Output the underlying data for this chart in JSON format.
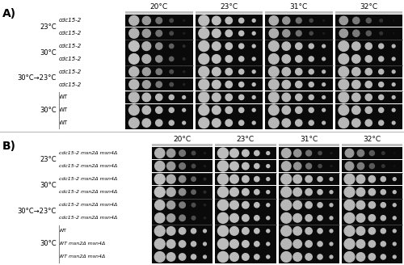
{
  "fig_width": 5.0,
  "fig_height": 3.28,
  "dpi": 100,
  "bg_color": "#ffffff",
  "panel_A": {
    "label": "A)",
    "temp_labels_incub": [
      "20°C",
      "23°C",
      "31°C",
      "32°C"
    ],
    "row_labels": [
      [
        "cdc15-2",
        "cdc15-2"
      ],
      [
        "cdc15-2",
        "cdc15-2"
      ],
      [
        "cdc15-2",
        "cdc15-2"
      ],
      [
        "WT",
        "WT",
        "WT"
      ]
    ],
    "row_groups": [
      {
        "growth": "23°C",
        "rows": 2,
        "bracket": false
      },
      {
        "growth": "30°C",
        "rows": 2,
        "bracket": false
      },
      {
        "growth": "30°C→23°C",
        "rows": 2,
        "bracket": false
      },
      {
        "growth": "30°C",
        "rows": 3,
        "bracket": true
      }
    ]
  },
  "panel_B": {
    "label": "B)",
    "temp_labels_incub": [
      "20°C",
      "23°C",
      "31°C",
      "32°C"
    ],
    "row_labels": [
      [
        "cdc15-2 msn2Δ msn4Δ",
        "cdc15-2 msn2Δ msn4Δ"
      ],
      [
        "cdc15-2 msn2Δ msn4Δ",
        "cdc15-2 msn2Δ msn4Δ"
      ],
      [
        "cdc15-2 msn2Δ msn4Δ",
        "cdc15-2 msn2Δ msn4Δ"
      ],
      [
        "WT",
        "WT msn2Δ msn4Δ",
        "WT msn2Δ msn4Δ"
      ]
    ],
    "row_groups": [
      {
        "growth": "23°C",
        "rows": 2,
        "bracket": false
      },
      {
        "growth": "30°C",
        "rows": 2,
        "bracket": false
      },
      {
        "growth": "30°C→23°C",
        "rows": 2,
        "bracket": false
      },
      {
        "growth": "30°C",
        "rows": 3,
        "bracket": true
      }
    ]
  }
}
